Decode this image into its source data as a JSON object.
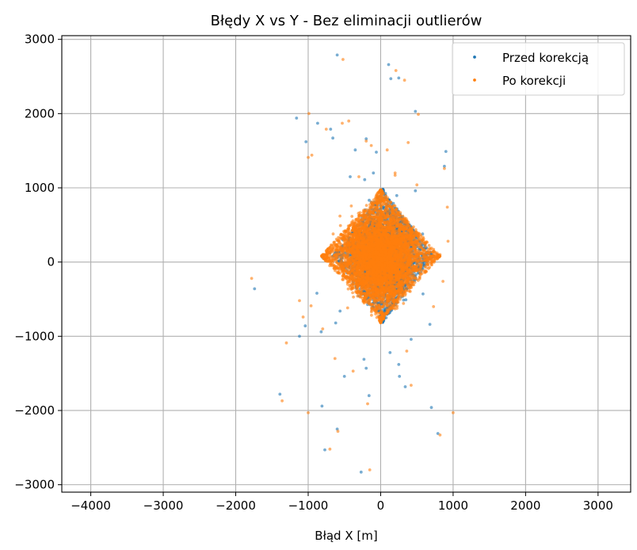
{
  "chart_data": {
    "type": "scatter",
    "title": "Błędy X vs Y - Bez eliminacji outlierów",
    "xlabel": "Błąd X [m]",
    "ylabel": "",
    "xlim": [
      -4400,
      3450
    ],
    "ylim": [
      -3100,
      3050
    ],
    "xticks": [
      -4000,
      -3000,
      -2000,
      -1000,
      0,
      1000,
      2000,
      3000
    ],
    "yticks": [
      -3000,
      -2000,
      -1000,
      0,
      1000,
      2000,
      3000
    ],
    "xtick_labels": [
      "−4000",
      "−3000",
      "−2000",
      "−1000",
      "0",
      "1000",
      "2000",
      "3000"
    ],
    "ytick_labels": [
      "−3000",
      "−2000",
      "−1000",
      "0",
      "1000",
      "2000",
      "3000"
    ],
    "grid": true,
    "legend_position": "top-right",
    "series": [
      {
        "name": "Przed korekcją",
        "color": "#1f77b4",
        "cluster": {
          "cx": 30,
          "cy": 80,
          "rx": 700,
          "ry": 900
        },
        "points": [
          [
            -600,
            2790
          ],
          [
            110,
            2660
          ],
          [
            140,
            2470
          ],
          [
            250,
            2480
          ],
          [
            480,
            2030
          ],
          [
            -1160,
            1940
          ],
          [
            -870,
            1870
          ],
          [
            -690,
            1790
          ],
          [
            -1030,
            1620
          ],
          [
            -660,
            1670
          ],
          [
            -200,
            1660
          ],
          [
            -350,
            1510
          ],
          [
            -60,
            1480
          ],
          [
            -420,
            1150
          ],
          [
            -220,
            1110
          ],
          [
            -100,
            1200
          ],
          [
            900,
            1490
          ],
          [
            880,
            1290
          ],
          [
            480,
            960
          ],
          [
            -1120,
            -1000
          ],
          [
            -1040,
            -860
          ],
          [
            -820,
            -940
          ],
          [
            -1740,
            -360
          ],
          [
            -500,
            -1540
          ],
          [
            -230,
            -1310
          ],
          [
            -200,
            -1430
          ],
          [
            250,
            -1380
          ],
          [
            260,
            -1540
          ],
          [
            340,
            -1680
          ],
          [
            700,
            -1960
          ],
          [
            -1390,
            -1780
          ],
          [
            -810,
            -1940
          ],
          [
            -160,
            -1800
          ],
          [
            -600,
            -2250
          ],
          [
            -770,
            -2530
          ],
          [
            -270,
            -2830
          ],
          [
            790,
            -2310
          ],
          [
            -620,
            -820
          ],
          [
            -560,
            -660
          ],
          [
            -880,
            -420
          ],
          [
            -700,
            120
          ],
          [
            -800,
            60
          ],
          [
            130,
            -1220
          ],
          [
            420,
            -1040
          ],
          [
            680,
            -840
          ]
        ]
      },
      {
        "name": "Po korekcji",
        "color": "#ff7f0e",
        "cluster": {
          "cx": 0,
          "cy": 80,
          "rx": 820,
          "ry": 900
        },
        "points": [
          [
            -520,
            2730
          ],
          [
            330,
            2450
          ],
          [
            210,
            2580
          ],
          [
            520,
            1990
          ],
          [
            -990,
            2000
          ],
          [
            -750,
            1790
          ],
          [
            -440,
            1900
          ],
          [
            -530,
            1870
          ],
          [
            -1000,
            1410
          ],
          [
            -950,
            1440
          ],
          [
            -200,
            1630
          ],
          [
            -130,
            1570
          ],
          [
            90,
            1510
          ],
          [
            380,
            1610
          ],
          [
            -300,
            1150
          ],
          [
            200,
            1200
          ],
          [
            200,
            1170
          ],
          [
            500,
            1040
          ],
          [
            880,
            1260
          ],
          [
            920,
            740
          ],
          [
            930,
            280
          ],
          [
            -1780,
            -220
          ],
          [
            -1300,
            -1090
          ],
          [
            -1070,
            -740
          ],
          [
            -960,
            -590
          ],
          [
            -1120,
            -520
          ],
          [
            -1360,
            -1870
          ],
          [
            -700,
            -2520
          ],
          [
            -1000,
            -2030
          ],
          [
            -590,
            -2280
          ],
          [
            -150,
            -2800
          ],
          [
            820,
            -2330
          ],
          [
            1000,
            -2030
          ],
          [
            -630,
            -1300
          ],
          [
            -380,
            -1470
          ],
          [
            -180,
            -1910
          ],
          [
            360,
            -1200
          ],
          [
            420,
            -1660
          ],
          [
            730,
            -600
          ],
          [
            -800,
            -900
          ],
          [
            820,
            100
          ],
          [
            860,
            -260
          ]
        ]
      }
    ]
  }
}
